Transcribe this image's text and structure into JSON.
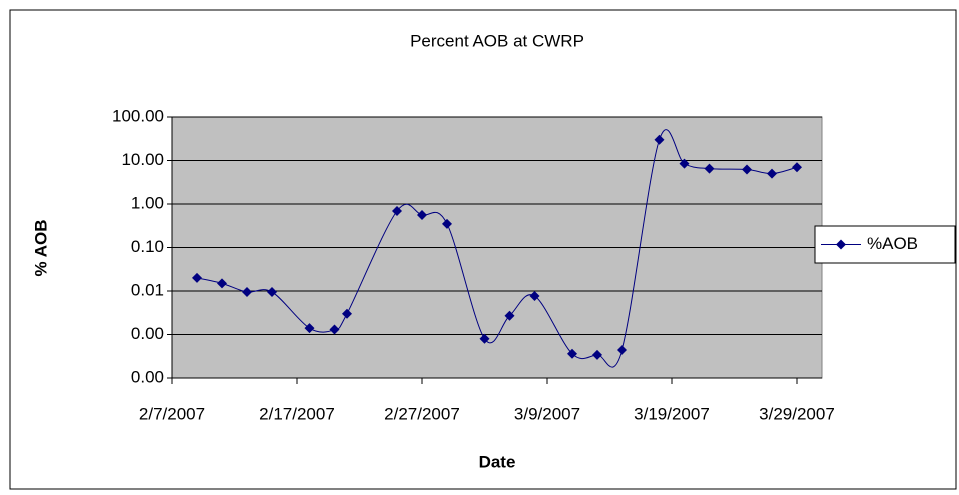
{
  "chart_data": {
    "type": "line",
    "title": "Percent AOB at CWRP",
    "x_label": "Date",
    "y_label": "% AOB",
    "x": [
      "2007-02-09",
      "2007-02-11",
      "2007-02-13",
      "2007-02-15",
      "2007-02-18",
      "2007-02-20",
      "2007-02-21",
      "2007-02-25",
      "2007-02-27",
      "2007-03-01",
      "2007-03-04",
      "2007-03-06",
      "2007-03-08",
      "2007-03-11",
      "2007-03-13",
      "2007-03-15",
      "2007-03-18",
      "2007-03-20",
      "2007-03-22",
      "2007-03-25",
      "2007-03-27",
      "2007-03-29"
    ],
    "series": [
      {
        "name": "%AOB",
        "color": "#000080",
        "values": [
          0.02,
          0.015,
          0.0095,
          0.0095,
          0.0014,
          0.0013,
          0.003,
          0.69,
          0.56,
          0.35,
          0.0008,
          0.0027,
          0.0077,
          0.00036,
          0.00034,
          0.00044,
          30,
          8.5,
          6.5,
          6.2,
          5,
          7
        ]
      }
    ],
    "xlim": [
      "2007-02-07",
      "2007-03-31"
    ],
    "xticks": [
      {
        "value": "2007-02-07",
        "label": "2/7/2007"
      },
      {
        "value": "2007-02-17",
        "label": "2/17/2007"
      },
      {
        "value": "2007-02-27",
        "label": "2/27/2007"
      },
      {
        "value": "2007-03-09",
        "label": "3/9/2007"
      },
      {
        "value": "2007-03-19",
        "label": "3/19/2007"
      },
      {
        "value": "2007-03-29",
        "label": "3/29/2007"
      }
    ],
    "ylim": [
      0.0001,
      100
    ],
    "log_y": true,
    "yticks": [
      {
        "value": 0.0001,
        "label": "0.00"
      },
      {
        "value": 0.001,
        "label": "0.00"
      },
      {
        "value": 0.01,
        "label": "0.01"
      },
      {
        "value": 0.1,
        "label": "0.10"
      },
      {
        "value": 1,
        "label": "1.00"
      },
      {
        "value": 10,
        "label": "10.00"
      },
      {
        "value": 100,
        "label": "100.00"
      }
    ],
    "grid": true,
    "legend": "right",
    "plot_background": "#c0c0c0"
  }
}
